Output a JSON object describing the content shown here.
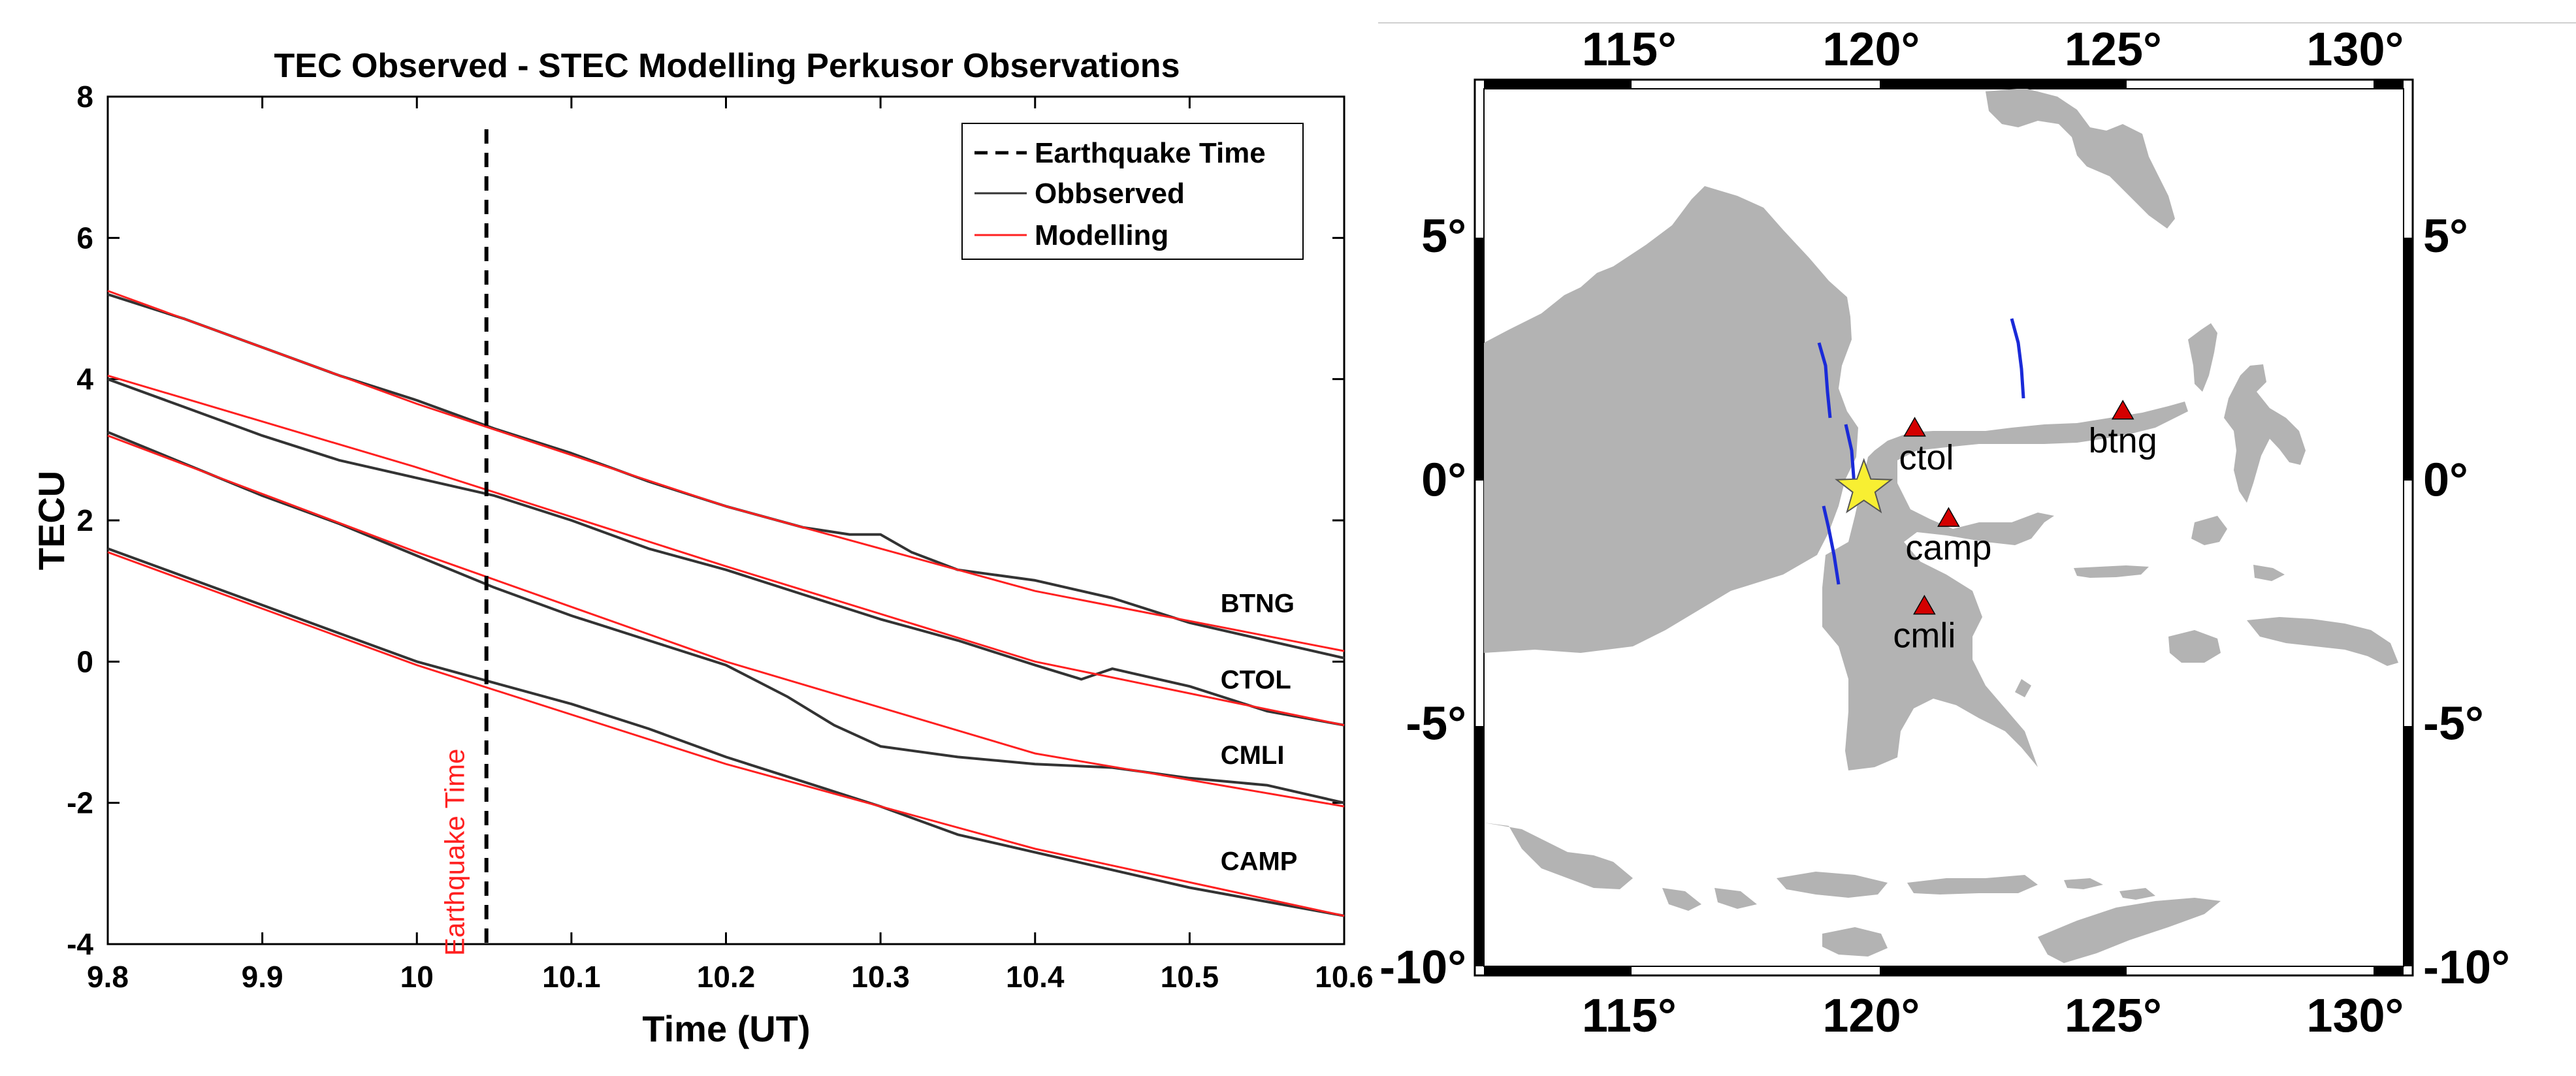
{
  "chart_data": [
    {
      "type": "line",
      "title": "TEC Observed - STEC Modelling Perkusor Observations",
      "xlabel": "Time (UT)",
      "ylabel": "TECU",
      "xlim": [
        9.8,
        10.6
      ],
      "ylim": [
        -4,
        8
      ],
      "x_ticks": [
        "9.8",
        "9.9",
        "10",
        "10.1",
        "10.2",
        "10.3",
        "10.4",
        "10.5",
        "10.6"
      ],
      "y_ticks": [
        "-4",
        "-2",
        "0",
        "2",
        "4",
        "6",
        "8"
      ],
      "earthquake_time": 10.045,
      "earthquake_label": "Earthquake Time",
      "legend": {
        "position": "top-right",
        "entries": [
          {
            "label": "Earthquake Time",
            "style": "dashed",
            "color": "#000000"
          },
          {
            "label": "Obbserved",
            "style": "solid",
            "color": "#333333"
          },
          {
            "label": "Modelling",
            "style": "solid",
            "color": "#ff2020"
          }
        ]
      },
      "series": [
        {
          "name": "BTNG",
          "modelling": {
            "x": [
              9.8,
              10.0,
              10.2,
              10.4,
              10.6
            ],
            "y": [
              5.25,
              3.65,
              2.2,
              1.0,
              0.15
            ]
          },
          "observed": {
            "x": [
              9.8,
              9.85,
              9.9,
              9.95,
              10.0,
              10.05,
              10.1,
              10.15,
              10.2,
              10.25,
              10.28,
              10.3,
              10.32,
              10.35,
              10.4,
              10.45,
              10.5,
              10.55,
              10.6
            ],
            "y": [
              5.2,
              4.85,
              4.45,
              4.05,
              3.7,
              3.3,
              2.95,
              2.55,
              2.2,
              1.9,
              1.8,
              1.8,
              1.55,
              1.3,
              1.15,
              0.9,
              0.55,
              0.3,
              0.05
            ]
          }
        },
        {
          "name": "CTOL",
          "modelling": {
            "x": [
              9.8,
              10.0,
              10.2,
              10.4,
              10.6
            ],
            "y": [
              4.05,
              2.75,
              1.35,
              0.0,
              -0.9
            ]
          },
          "observed": {
            "x": [
              9.8,
              9.85,
              9.9,
              9.95,
              10.0,
              10.05,
              10.1,
              10.15,
              10.2,
              10.25,
              10.3,
              10.35,
              10.4,
              10.43,
              10.45,
              10.5,
              10.55,
              10.6
            ],
            "y": [
              4.0,
              3.6,
              3.2,
              2.85,
              2.6,
              2.35,
              2.0,
              1.6,
              1.3,
              0.95,
              0.6,
              0.3,
              -0.05,
              -0.25,
              -0.1,
              -0.35,
              -0.7,
              -0.9
            ]
          }
        },
        {
          "name": "CMLI",
          "modelling": {
            "x": [
              9.8,
              10.0,
              10.2,
              10.4,
              10.6
            ],
            "y": [
              3.2,
              1.55,
              0.0,
              -1.3,
              -2.05
            ]
          },
          "observed": {
            "x": [
              9.8,
              9.85,
              9.9,
              9.95,
              10.0,
              10.05,
              10.1,
              10.15,
              10.2,
              10.24,
              10.27,
              10.3,
              10.35,
              10.4,
              10.45,
              10.5,
              10.55,
              10.6
            ],
            "y": [
              3.25,
              2.8,
              2.35,
              1.95,
              1.5,
              1.05,
              0.65,
              0.3,
              -0.05,
              -0.5,
              -0.9,
              -1.2,
              -1.35,
              -1.45,
              -1.5,
              -1.65,
              -1.75,
              -2.0
            ]
          }
        },
        {
          "name": "CAMP",
          "modelling": {
            "x": [
              9.8,
              10.0,
              10.2,
              10.4,
              10.6
            ],
            "y": [
              1.55,
              -0.05,
              -1.45,
              -2.65,
              -3.6
            ]
          },
          "observed": {
            "x": [
              9.8,
              9.85,
              9.9,
              9.95,
              10.0,
              10.05,
              10.1,
              10.15,
              10.2,
              10.25,
              10.3,
              10.35,
              10.4,
              10.45,
              10.5,
              10.55,
              10.6
            ],
            "y": [
              1.6,
              1.2,
              0.8,
              0.4,
              0.0,
              -0.3,
              -0.6,
              -0.95,
              -1.35,
              -1.7,
              -2.05,
              -2.45,
              -2.7,
              -2.95,
              -3.2,
              -3.4,
              -3.6
            ]
          }
        }
      ],
      "series_labels": [
        "BTNG",
        "CTOL",
        "CMLI",
        "CAMP"
      ]
    },
    {
      "type": "map",
      "lon_range": [
        112,
        131
      ],
      "lat_range": [
        -10,
        8
      ],
      "lon_ticks": [
        "115°",
        "120°",
        "125°",
        "130°"
      ],
      "lat_ticks_left": [
        "5°",
        "0°",
        "-5°",
        "-10°"
      ],
      "lat_ticks_right": [
        "5°",
        "0°",
        "-5°",
        "-10°"
      ],
      "epicenter": {
        "lon": 119.85,
        "lat": -0.2
      },
      "stations": [
        {
          "name": "ctol",
          "lon": 120.9,
          "lat": 1.05
        },
        {
          "name": "btng",
          "lon": 125.2,
          "lat": 1.4
        },
        {
          "name": "camp",
          "lon": 121.6,
          "lat": -0.8
        },
        {
          "name": "cmli",
          "lon": 121.1,
          "lat": -2.6
        }
      ],
      "colors": {
        "land": "#b3b3b3",
        "track": "#1a2ad8",
        "station": "#d40000",
        "epicenter": "#f8ef32"
      }
    }
  ]
}
